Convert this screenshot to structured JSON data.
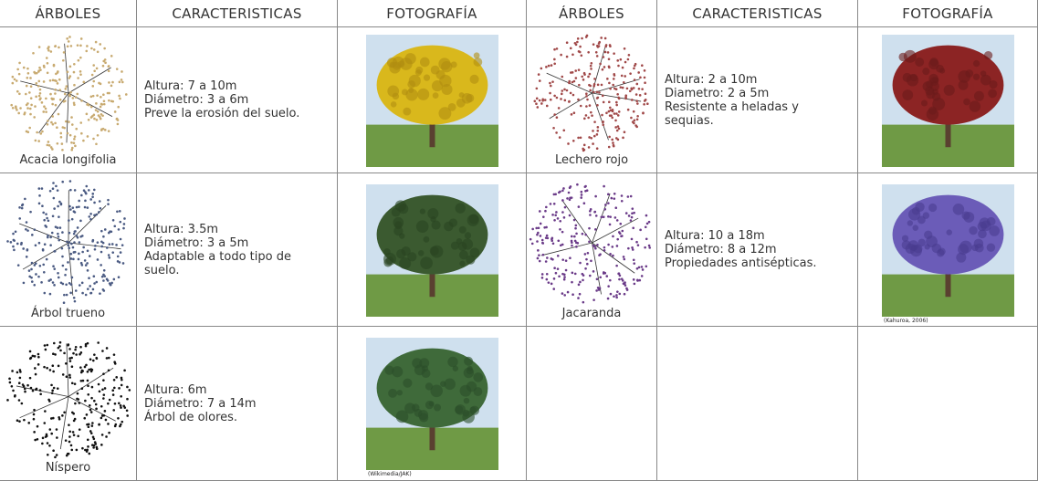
{
  "table": {
    "headers": [
      "ÁRBOLES",
      "CARACTERISTICAS",
      "FOTOGRAFÍA",
      "ÁRBOLES",
      "CARACTERISTICAS",
      "FOTOGRAFÍA"
    ],
    "rows": [
      [
        {
          "name": "Acacia longifolia",
          "traits": [
            "Altura: 7 a 10m",
            "Diámetro: 3 a 6m",
            "Preve la erosión del suelo."
          ]
        },
        {
          "name": "Lechero rojo",
          "traits": [
            "Altura: 2 a 10m",
            "Diametro: 2 a 5m",
            "Resistente a heladas y sequias."
          ]
        }
      ],
      [
        {
          "name": "Árbol trueno",
          "traits": [
            "Altura: 3.5m",
            "Diámetro: 3 a 5m",
            "Adaptable a todo tipo de suelo."
          ]
        },
        {
          "name": "Jacaranda",
          "traits": [
            "Altura: 10 a 18m",
            "Diámetro: 8 a 12m",
            "Propiedades antisépticas."
          ],
          "credit": "(Kahuroa, 2006)"
        }
      ],
      [
        {
          "name": "Níspero",
          "traits": [
            "Altura: 6m",
            "Diámetro: 7 a 14m",
            "Árbol de olores."
          ],
          "credit": "(Wikimedia/JAK)"
        }
      ]
    ]
  }
}
